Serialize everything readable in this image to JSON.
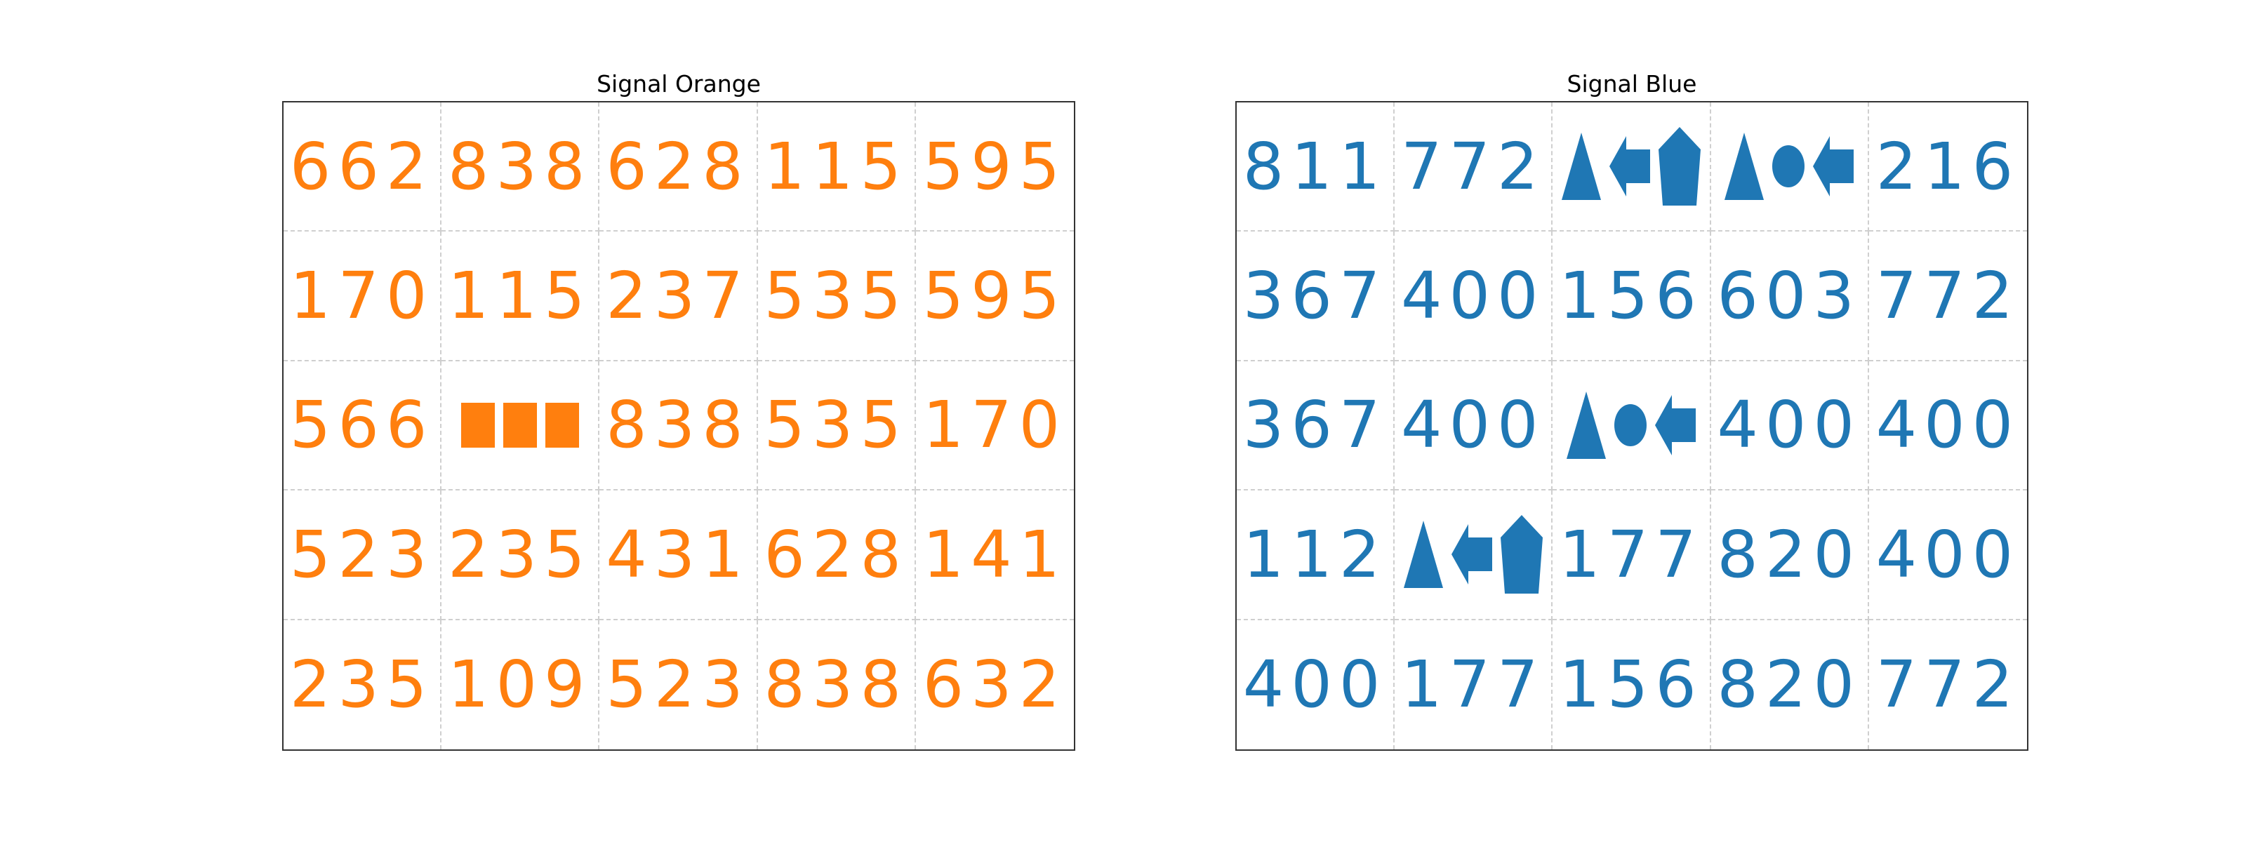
{
  "panels": [
    {
      "title": "Signal Orange",
      "color": "#ff7f0e",
      "rows": [
        [
          "662",
          "838",
          "628",
          "115",
          "595"
        ],
        [
          "170",
          "115",
          "237",
          "535",
          "595"
        ],
        [
          "566",
          {
            "shapes": [
              "square",
              "square",
              "square"
            ]
          },
          "838",
          "535",
          "170"
        ],
        [
          "523",
          "235",
          "431",
          "628",
          "141"
        ],
        [
          "235",
          "109",
          "523",
          "838",
          "632"
        ]
      ]
    },
    {
      "title": "Signal Blue",
      "color": "#1f77b4",
      "rows": [
        [
          "811",
          "772",
          {
            "shapes": [
              "triangle",
              "arrow-left",
              "pentagon"
            ]
          },
          {
            "shapes": [
              "triangle",
              "ellipse",
              "arrow-left"
            ]
          },
          "216"
        ],
        [
          "367",
          "400",
          "156",
          "603",
          "772"
        ],
        [
          "367",
          "400",
          {
            "shapes": [
              "triangle",
              "ellipse",
              "arrow-left"
            ]
          },
          "400",
          "400"
        ],
        [
          "112",
          {
            "shapes": [
              "triangle",
              "arrow-left",
              "pentagon"
            ]
          },
          "177",
          "820",
          "400"
        ],
        [
          "400",
          "177",
          "156",
          "820",
          "772"
        ]
      ]
    }
  ]
}
